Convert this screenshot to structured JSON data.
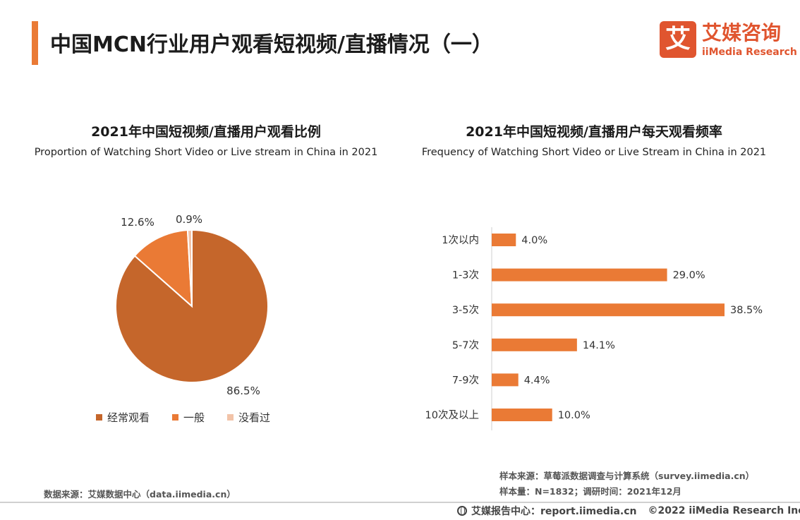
{
  "header": {
    "title": "中国MCN行业用户观看短视频/直播情况（一）",
    "logo": {
      "icon": "ai-character-logo-icon",
      "glyph": "艾",
      "name_cn": "艾媒咨询",
      "name_en": "iiMedia Research",
      "color": "#E0552F"
    }
  },
  "accent_color": "#EA7A35",
  "chart_data": [
    {
      "type": "pie",
      "title": "2021年中国短视频/直播用户观看比例",
      "subtitle": "Proportion of Watching Short Video or Live stream in China in 2021",
      "slices": [
        {
          "label": "经常观看",
          "value": 86.5,
          "display": "86.5%",
          "color": "#C5662B"
        },
        {
          "label": "一般",
          "value": 12.6,
          "display": "12.6%",
          "color": "#EA7A35"
        },
        {
          "label": "没看过",
          "value": 0.9,
          "display": "0.9%",
          "color": "#F2C3A8"
        }
      ],
      "legend_position": "bottom"
    },
    {
      "type": "bar",
      "orientation": "horizontal",
      "title": "2021年中国短视频/直播用户每天观看频率",
      "subtitle": "Frequency of Watching Short Video or Live Stream in China in 2021",
      "categories": [
        "1次以内",
        "1-3次",
        "3-5次",
        "5-7次",
        "7-9次",
        "10次及以上"
      ],
      "values": [
        4.0,
        29.0,
        38.5,
        14.1,
        4.4,
        10.0
      ],
      "value_labels": [
        "4.0%",
        "29.0%",
        "38.5%",
        "14.1%",
        "4.4%",
        "10.0%"
      ],
      "bar_color": "#EA7A35",
      "xlim": [
        0,
        38.5
      ]
    }
  ],
  "notes": {
    "sample_source": "样本来源：草莓派数据调查与计算系统（survey.iimedia.cn）",
    "sample_size": "样本量：N=1832；调研时间：2021年12月"
  },
  "source": "数据来源：艾媒数据中心（data.iimedia.cn）",
  "footer": {
    "icon": "globe-icon",
    "report_center": "艾媒报告中心：report.iimedia.cn",
    "copyright": "©2022 iiMedia Research Inc"
  }
}
